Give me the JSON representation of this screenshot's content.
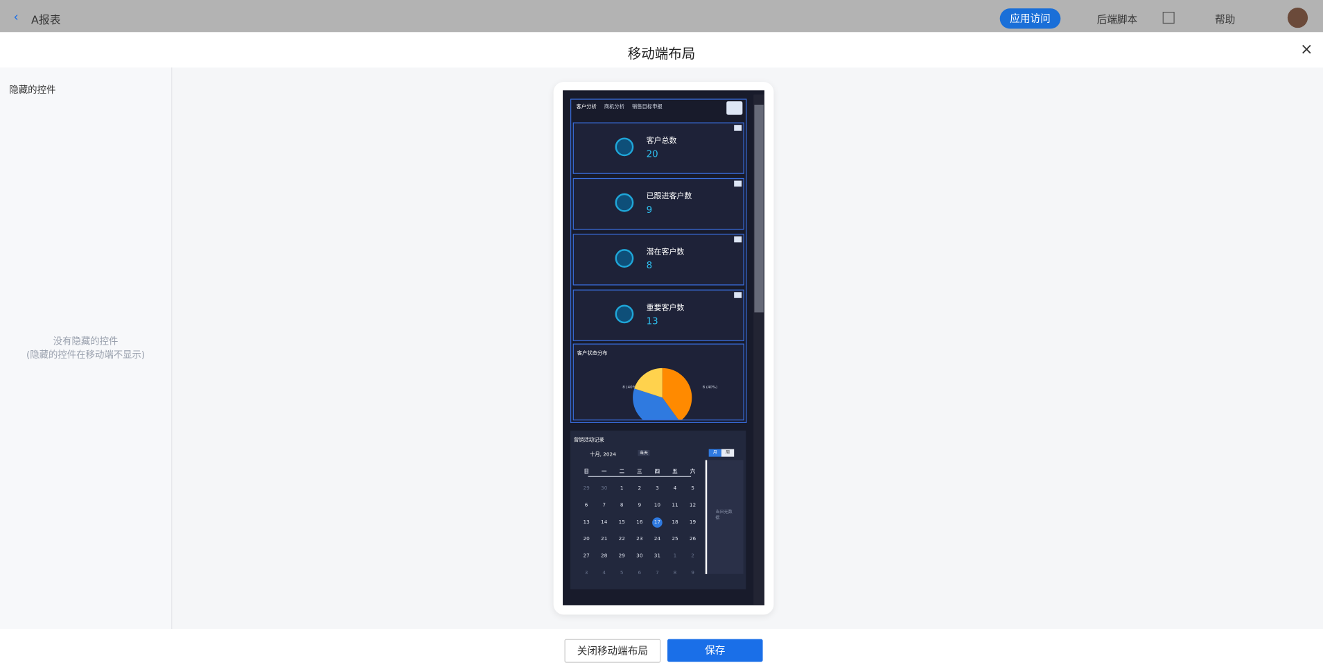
{
  "topbar": {
    "back": "A报表",
    "app_visit": "应用访问",
    "backend_script": "后端脚本",
    "help": "帮助"
  },
  "modal": {
    "title": "移动端布局",
    "hidden_title": "隐藏的控件",
    "empty_line1": "没有隐藏的控件",
    "empty_line2": "(隐藏的控件在移动端不显示)",
    "close_btn": "关闭移动端布局",
    "save_btn": "保存"
  },
  "phone": {
    "tabs": [
      "客户分析",
      "商机分析",
      "销售目标申报"
    ],
    "cards": [
      {
        "label": "客户总数",
        "value": 20
      },
      {
        "label": "已跟进客户数",
        "value": 9
      },
      {
        "label": "潜在客户数",
        "value": 8
      },
      {
        "label": "重要客户数",
        "value": 13
      }
    ],
    "pie": {
      "title": "客户状态分布",
      "slices": [
        {
          "value": 8,
          "label": "8 (40%)",
          "color": "#ff8a00"
        },
        {
          "value": 8,
          "label": "8 (40%)",
          "color": "#2f7ae0"
        },
        {
          "value": 4,
          "color": "#ffd24d"
        }
      ]
    },
    "calendar": {
      "title": "营销活动记录",
      "month": "十月, 2024",
      "today": "当天",
      "view_month": "月",
      "view_week": "周",
      "weekdays": [
        "日",
        "一",
        "二",
        "三",
        "四",
        "五",
        "六"
      ],
      "rows": [
        [
          "29",
          "30",
          "1",
          "2",
          "3",
          "4",
          "5"
        ],
        [
          "6",
          "7",
          "8",
          "9",
          "10",
          "11",
          "12"
        ],
        [
          "13",
          "14",
          "15",
          "16",
          "17",
          "18",
          "19"
        ],
        [
          "20",
          "21",
          "22",
          "23",
          "24",
          "25",
          "26"
        ],
        [
          "27",
          "28",
          "29",
          "30",
          "31",
          "1",
          "2"
        ],
        [
          "3",
          "4",
          "5",
          "6",
          "7",
          "8",
          "9"
        ]
      ],
      "empty": "当日无数据"
    }
  }
}
